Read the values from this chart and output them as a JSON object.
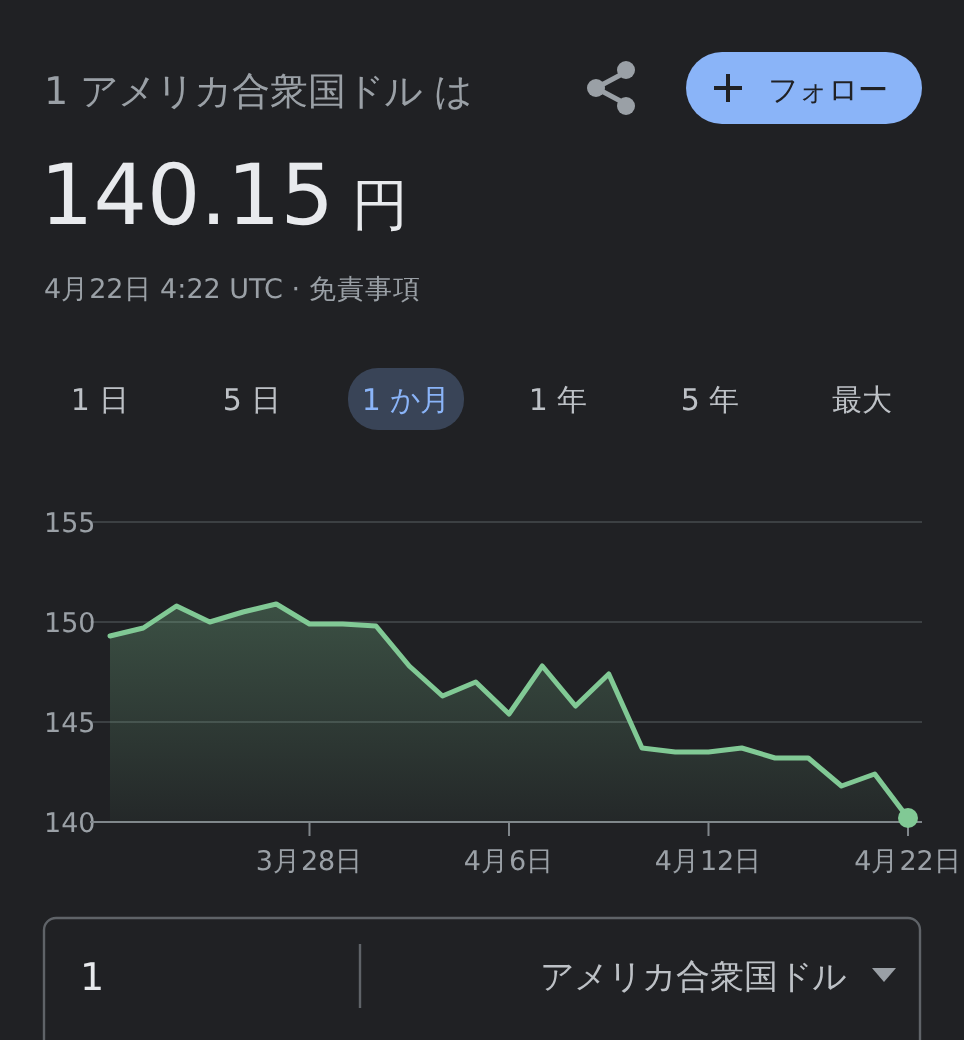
{
  "chart_data": {
    "type": "area",
    "title": "1 アメリカ合衆国ドル は",
    "subtitle": "140.15 円",
    "annotations": [
      "4月22日 4:22 UTC · 免責事項",
      "フォロー",
      "1 日",
      "5 日",
      "1 か月",
      "1 年",
      "5 年",
      "最大",
      "1",
      "アメリカ合衆国ドル"
    ],
    "categories": [
      null,
      null,
      null,
      null,
      null,
      null,
      "3月28日",
      null,
      null,
      null,
      null,
      null,
      "4月6日",
      null,
      null,
      null,
      null,
      null,
      "4月12日",
      null,
      null,
      null,
      null,
      null,
      "4月22日"
    ],
    "series": [
      {
        "color": "#81c995",
        "values": [
          149.3,
          149.7,
          150.8,
          150.0,
          150.5,
          150.9,
          149.9,
          149.9,
          149.8,
          147.8,
          146.3,
          147.0,
          145.4,
          147.8,
          145.8,
          147.4,
          143.7,
          143.5,
          143.5,
          143.7,
          143.2,
          143.2,
          141.8,
          142.4,
          140.2
        ]
      }
    ],
    "ylim": [
      140,
      155
    ],
    "yticks": [
      140,
      145,
      150,
      155
    ],
    "grid": "y"
  }
}
